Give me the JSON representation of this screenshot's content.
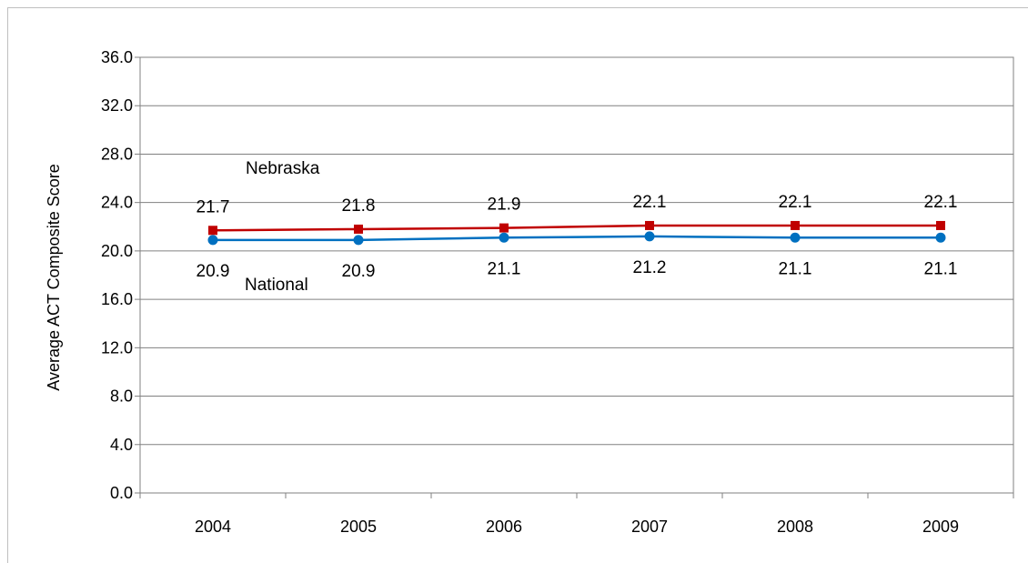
{
  "chart_data": {
    "type": "line",
    "categories": [
      "2004",
      "2005",
      "2006",
      "2007",
      "2008",
      "2009"
    ],
    "series": [
      {
        "name": "Nebraska",
        "values": [
          21.7,
          21.8,
          21.9,
          22.1,
          22.1,
          22.1
        ],
        "labels": [
          "21.7",
          "21.8",
          "21.9",
          "22.1",
          "22.1",
          "22.1"
        ],
        "color": "#c00000",
        "marker": "square"
      },
      {
        "name": "National",
        "values": [
          20.9,
          20.9,
          21.1,
          21.2,
          21.1,
          21.1
        ],
        "labels": [
          "20.9",
          "20.9",
          "21.1",
          "21.2",
          "21.1",
          "21.1"
        ],
        "color": "#0070c0",
        "marker": "circle"
      }
    ],
    "ylabel": "Average ACT Composite Score",
    "xlabel": "",
    "ylim": [
      0,
      36
    ],
    "yticks": [
      "0.0",
      "4.0",
      "8.0",
      "12.0",
      "16.0",
      "20.0",
      "24.0",
      "28.0",
      "32.0",
      "36.0"
    ],
    "grid": true,
    "legend": "inline labels"
  }
}
